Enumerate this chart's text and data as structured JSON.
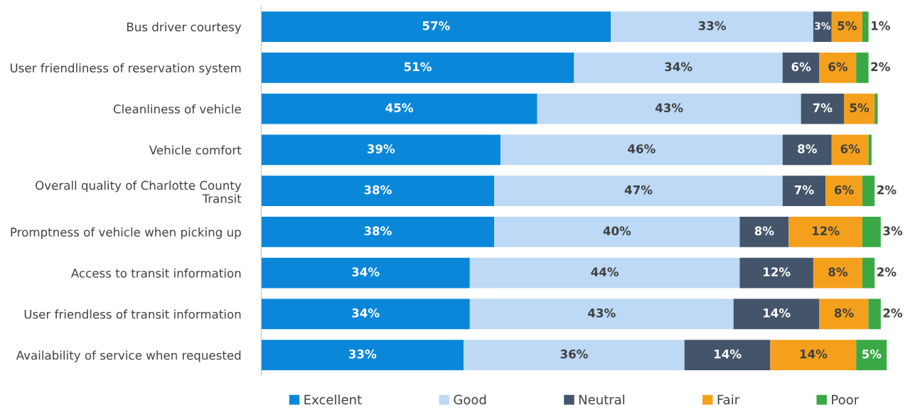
{
  "chart_data": {
    "type": "bar",
    "orientation": "horizontal",
    "stacked": true,
    "legend": "bottom",
    "grid": false,
    "categories": [
      "Bus driver courtesy",
      "User friendliness of reservation system",
      "Cleanliness of vehicle",
      "Vehicle comfort",
      "Overall quality of Charlotte County\nTransit",
      "Promptness of vehicle when picking up",
      "Access to transit information",
      "User friendless of transit information",
      "Availability of service when requested"
    ],
    "series": [
      {
        "name": "Excellent",
        "color": "#0a87d9",
        "values": [
          57,
          51,
          45,
          39,
          38,
          38,
          34,
          34,
          33
        ],
        "value_labels": [
          "57%",
          "51%",
          "45%",
          "39%",
          "38%",
          "38%",
          "34%",
          "34%",
          "33%"
        ]
      },
      {
        "name": "Good",
        "color": "#bdd9f6",
        "values": [
          33,
          34,
          43,
          46,
          47,
          40,
          44,
          43,
          36
        ],
        "value_labels": [
          "33%",
          "34%",
          "43%",
          "46%",
          "47%",
          "40%",
          "44%",
          "43%",
          "36%"
        ]
      },
      {
        "name": "Neutral",
        "color": "#44546a",
        "values": [
          3,
          6,
          7,
          8,
          7,
          8,
          12,
          14,
          14
        ],
        "value_labels": [
          "3%",
          "6%",
          "7%",
          "8%",
          "7%",
          "8%",
          "12%",
          "14%",
          "14%"
        ]
      },
      {
        "name": "Fair",
        "color": "#f5a01c",
        "values": [
          5,
          6,
          5,
          6,
          6,
          12,
          8,
          8,
          14
        ],
        "value_labels": [
          "5%",
          "6%",
          "5%",
          "6%",
          "6%",
          "12%",
          "8%",
          "8%",
          "14%"
        ]
      },
      {
        "name": "Poor",
        "color": "#3aa845",
        "values": [
          1,
          2,
          0.5,
          0.5,
          2,
          3,
          2,
          2,
          5
        ],
        "value_labels": [
          "1%",
          "2%",
          null,
          null,
          "2%",
          "3%",
          "2%",
          "2%",
          "5%"
        ]
      }
    ]
  }
}
